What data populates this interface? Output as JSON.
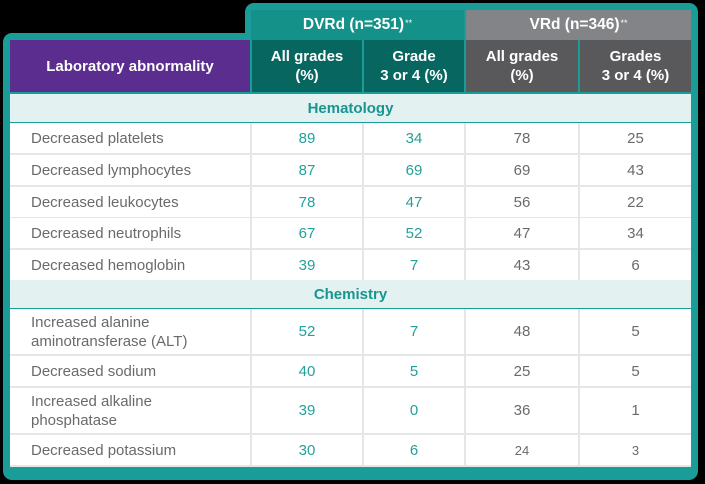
{
  "colors": {
    "frame": "#1a9d98",
    "dvrd_group": "#149188",
    "dvrd_header": "#076660",
    "vrd_group": "#838487",
    "vrd_header": "#59595b",
    "label_header": "#5b2d8e",
    "section_bg": "#e3f1f1",
    "section_text": "#17958f",
    "dvrd_value": "#23a09a",
    "vrd_value": "#6a6a6a"
  },
  "groups": {
    "dvrd": {
      "label": "DVRd (n=351)",
      "mark": "**"
    },
    "vrd": {
      "label": "VRd (n=346)",
      "mark": "**"
    }
  },
  "headers": {
    "label": "Laboratory abnormality",
    "dvrd_all": "All grades\n(%)",
    "dvrd_g34": "Grade\n3 or 4 (%)",
    "vrd_all": "All grades\n(%)",
    "vrd_g34": "Grades\n3 or 4 (%)"
  },
  "sections": [
    {
      "title": "Hematology",
      "rows": [
        {
          "label": "Decreased platelets",
          "dvrd_all": "89",
          "dvrd_g34": "34",
          "vrd_all": "78",
          "vrd_g34": "25"
        },
        {
          "label": "Decreased lymphocytes",
          "dvrd_all": "87",
          "dvrd_g34": "69",
          "vrd_all": "69",
          "vrd_g34": "43"
        },
        {
          "label": "Decreased leukocytes",
          "dvrd_all": "78",
          "dvrd_g34": "47",
          "vrd_all": "56",
          "vrd_g34": "22"
        },
        {
          "label": "Decreased neutrophils",
          "dvrd_all": "67",
          "dvrd_g34": "52",
          "vrd_all": "47",
          "vrd_g34": "34"
        },
        {
          "label": "Decreased hemoglobin",
          "dvrd_all": "39",
          "dvrd_g34": "7",
          "vrd_all": "43",
          "vrd_g34": "6"
        }
      ]
    },
    {
      "title": "Chemistry",
      "rows": [
        {
          "label": "Increased alanine\naminotransferase (ALT)",
          "dvrd_all": "52",
          "dvrd_g34": "7",
          "vrd_all": "48",
          "vrd_g34": "5"
        },
        {
          "label": "Decreased sodium",
          "dvrd_all": "40",
          "dvrd_g34": "5",
          "vrd_all": "25",
          "vrd_g34": "5"
        },
        {
          "label": "Increased alkaline\nphosphatase",
          "dvrd_all": "39",
          "dvrd_g34": "0",
          "vrd_all": "36",
          "vrd_g34": "1"
        },
        {
          "label": "Decreased potassium",
          "dvrd_all": "30",
          "dvrd_g34": "6",
          "vrd_all": "24",
          "vrd_g34": "3"
        }
      ]
    }
  ]
}
